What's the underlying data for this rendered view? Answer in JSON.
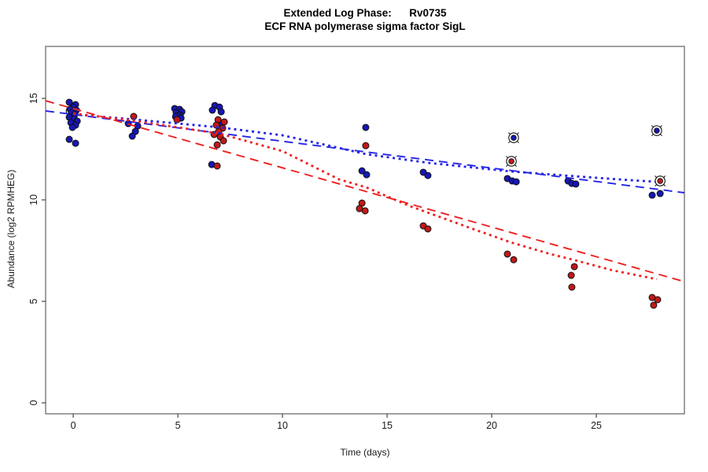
{
  "header": {
    "title_line1": "Extended Log Phase:      Rv0735",
    "title_line2": "ECF RNA polymerase sigma factor SigL"
  },
  "chart_data": {
    "type": "scatter",
    "title": "Extended Log Phase: Rv0735",
    "subtitle": "ECF RNA polymerase sigma factor SigL",
    "xlabel": "Time  (days)",
    "ylabel": "Abundance  (log2 RPMHEG)",
    "xlim": [
      -1.32,
      29.21
    ],
    "ylim": [
      -0.54,
      17.56
    ],
    "x_ticks": [
      0,
      5,
      10,
      15,
      20,
      25
    ],
    "y_ticks": [
      0,
      5,
      10,
      15
    ],
    "grid": false,
    "colors": {
      "blue_point": "#1717b5",
      "red_point": "#c11919",
      "blue_line": "#2525e6",
      "red_line": "#ef2020",
      "point_edge": "#111111",
      "box": "#777777"
    },
    "series": [
      {
        "name": "condition-blue",
        "color": "#1717b5",
        "points": [
          [
            -0.19,
            14.81
          ],
          [
            0.11,
            14.69
          ],
          [
            0.0,
            14.57
          ],
          [
            -0.15,
            14.46
          ],
          [
            0.15,
            14.42
          ],
          [
            -0.08,
            14.3
          ],
          [
            0.08,
            14.22
          ],
          [
            -0.19,
            14.07
          ],
          [
            0.04,
            13.99
          ],
          [
            0.19,
            13.88
          ],
          [
            -0.11,
            13.8
          ],
          [
            0.11,
            13.68
          ],
          [
            -0.04,
            13.57
          ],
          [
            -0.19,
            12.98
          ],
          [
            0.11,
            12.79
          ],
          [
            2.63,
            13.76
          ],
          [
            3.08,
            13.64
          ],
          [
            2.97,
            13.37
          ],
          [
            2.82,
            13.14
          ],
          [
            4.85,
            14.5
          ],
          [
            5.08,
            14.46
          ],
          [
            5.19,
            14.34
          ],
          [
            4.92,
            14.3
          ],
          [
            5.11,
            14.18
          ],
          [
            5.0,
            14.15
          ],
          [
            4.89,
            14.1
          ],
          [
            5.15,
            14.03
          ],
          [
            6.77,
            14.65
          ],
          [
            6.99,
            14.57
          ],
          [
            6.65,
            14.42
          ],
          [
            7.07,
            14.34
          ],
          [
            7.03,
            13.76
          ],
          [
            6.62,
            11.74
          ],
          [
            13.98,
            13.57
          ],
          [
            13.8,
            11.43
          ],
          [
            14.02,
            11.24
          ],
          [
            16.73,
            11.36
          ],
          [
            16.95,
            11.2
          ],
          [
            20.75,
            11.05
          ],
          [
            20.98,
            10.93
          ],
          [
            21.17,
            10.89
          ],
          [
            23.65,
            10.93
          ],
          [
            23.83,
            10.81
          ],
          [
            24.02,
            10.78
          ],
          [
            27.67,
            10.23
          ],
          [
            28.05,
            10.31
          ]
        ]
      },
      {
        "name": "condition-red",
        "color": "#c11919",
        "points": [
          [
            2.89,
            14.11
          ],
          [
            4.96,
            13.95
          ],
          [
            6.92,
            13.95
          ],
          [
            7.22,
            13.84
          ],
          [
            6.84,
            13.68
          ],
          [
            7.14,
            13.53
          ],
          [
            6.95,
            13.37
          ],
          [
            6.73,
            13.22
          ],
          [
            7.03,
            13.1
          ],
          [
            7.18,
            12.91
          ],
          [
            6.88,
            12.71
          ],
          [
            6.88,
            11.67
          ],
          [
            13.98,
            12.67
          ],
          [
            13.8,
            9.84
          ],
          [
            13.68,
            9.57
          ],
          [
            13.95,
            9.46
          ],
          [
            16.73,
            8.72
          ],
          [
            16.95,
            8.57
          ],
          [
            20.75,
            7.33
          ],
          [
            21.05,
            7.05
          ],
          [
            23.95,
            6.71
          ],
          [
            23.8,
            6.28
          ],
          [
            23.83,
            5.7
          ],
          [
            27.67,
            5.19
          ],
          [
            27.93,
            5.08
          ],
          [
            27.74,
            4.81
          ]
        ]
      }
    ],
    "circled_points": [
      {
        "series": "blue",
        "x": 21.05,
        "y": 13.06
      },
      {
        "series": "red",
        "x": 20.94,
        "y": 11.9
      },
      {
        "series": "blue",
        "x": 27.89,
        "y": 13.41
      },
      {
        "series": "red",
        "x": 28.05,
        "y": 10.93
      }
    ],
    "ring_point": {
      "x": -0.11,
      "y": 14.38
    },
    "fit_lines": [
      {
        "name": "blue-linear-fit",
        "style": "dashed",
        "color": "#2525e6",
        "points": [
          [
            -1.32,
            14.38
          ],
          [
            29.21,
            10.35
          ]
        ]
      },
      {
        "name": "red-linear-fit",
        "style": "dashed",
        "color": "#ef2020",
        "points": [
          [
            -1.32,
            14.88
          ],
          [
            29.21,
            5.97
          ]
        ]
      },
      {
        "name": "blue-loess-fit",
        "style": "dotted",
        "color": "#2525e6",
        "points": [
          [
            0,
            14.22
          ],
          [
            3,
            13.95
          ],
          [
            5,
            13.76
          ],
          [
            7,
            13.57
          ],
          [
            10,
            13.18
          ],
          [
            12.7,
            12.56
          ],
          [
            14,
            12.25
          ],
          [
            17,
            11.82
          ],
          [
            20.9,
            11.4
          ],
          [
            24,
            11.16
          ],
          [
            26.6,
            10.97
          ],
          [
            27.9,
            10.89
          ]
        ]
      },
      {
        "name": "red-loess-fit",
        "style": "dotted",
        "color": "#ef2020",
        "points": [
          [
            0,
            14.26
          ],
          [
            3,
            13.88
          ],
          [
            5,
            13.57
          ],
          [
            7,
            13.26
          ],
          [
            10,
            12.4
          ],
          [
            12.7,
            11.01
          ],
          [
            14,
            10.62
          ],
          [
            16.1,
            9.69
          ],
          [
            19.1,
            8.57
          ],
          [
            20.9,
            7.91
          ],
          [
            22.8,
            7.33
          ],
          [
            24,
            7.02
          ],
          [
            25.8,
            6.52
          ],
          [
            27.9,
            6.09
          ]
        ]
      }
    ]
  }
}
